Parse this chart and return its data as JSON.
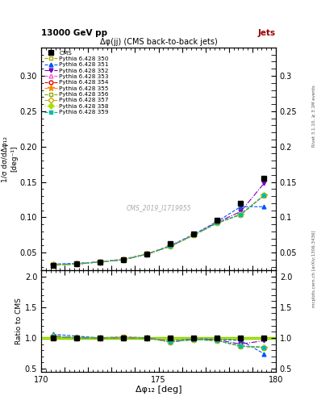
{
  "title_main": "13000 GeV pp",
  "title_right": "Jets",
  "plot_title": "Δφ(јј) (CMS back-to-back jets)",
  "watermark": "CMS_2019_I1719955",
  "xlabel": "Δφ₁₂ [deg]",
  "ylabel": "1/σ dσ/dΔφ₁₂",
  "ylabel_units": "[deg⁻¹]",
  "ylabel_ratio": "Ratio to CMS",
  "right_label": "mcplots.cern.ch [arXiv:1306.3436]",
  "rivet_label": "Rivet 3.1.10, ≥ 3.1M events",
  "xlim": [
    170,
    180
  ],
  "ylim_main": [
    0.025,
    0.34
  ],
  "ylim_ratio": [
    0.45,
    2.1
  ],
  "yticks_main": [
    0.05,
    0.1,
    0.15,
    0.2,
    0.25,
    0.3
  ],
  "yticks_ratio": [
    0.5,
    1.0,
    1.5,
    2.0
  ],
  "x_data": [
    170.5,
    171.5,
    172.5,
    173.5,
    174.5,
    175.5,
    176.5,
    177.5,
    178.5,
    179.5
  ],
  "cms_data": [
    0.032,
    0.034,
    0.037,
    0.04,
    0.048,
    0.063,
    0.077,
    0.096,
    0.12,
    0.155
  ],
  "series": [
    {
      "label": "Pythia 6.428 350",
      "color": "#aaaa00",
      "linestyle": "--",
      "marker": "s",
      "markerfilled": false,
      "data": [
        0.032,
        0.034,
        0.037,
        0.041,
        0.048,
        0.059,
        0.075,
        0.092,
        0.104,
        0.131
      ],
      "ratio": [
        1.0,
        1.0,
        1.0,
        1.02,
        1.0,
        0.937,
        0.974,
        0.958,
        0.867,
        0.845
      ]
    },
    {
      "label": "Pythia 6.428 351",
      "color": "#0055ff",
      "linestyle": "--",
      "marker": "^",
      "markerfilled": true,
      "data": [
        0.034,
        0.035,
        0.037,
        0.04,
        0.048,
        0.06,
        0.076,
        0.094,
        0.115,
        0.115
      ],
      "ratio": [
        1.06,
        1.03,
        1.0,
        1.0,
        1.0,
        0.952,
        0.987,
        0.979,
        0.958,
        0.742
      ]
    },
    {
      "label": "Pythia 6.428 352",
      "color": "#7700bb",
      "linestyle": "-.",
      "marker": "v",
      "markerfilled": true,
      "data": [
        0.033,
        0.034,
        0.037,
        0.04,
        0.048,
        0.059,
        0.075,
        0.093,
        0.108,
        0.148
      ],
      "ratio": [
        1.03,
        1.0,
        1.0,
        1.0,
        1.0,
        0.937,
        0.974,
        0.969,
        0.9,
        0.955
      ]
    },
    {
      "label": "Pythia 6.428 353",
      "color": "#ff55cc",
      "linestyle": "--",
      "marker": "^",
      "markerfilled": false,
      "data": [
        0.033,
        0.034,
        0.037,
        0.041,
        0.048,
        0.06,
        0.075,
        0.092,
        0.104,
        0.131
      ],
      "ratio": [
        1.03,
        1.0,
        1.0,
        1.02,
        1.0,
        0.952,
        0.974,
        0.958,
        0.867,
        0.845
      ]
    },
    {
      "label": "Pythia 6.428 354",
      "color": "#dd0000",
      "linestyle": "--",
      "marker": "o",
      "markerfilled": false,
      "data": [
        0.033,
        0.034,
        0.037,
        0.04,
        0.048,
        0.059,
        0.075,
        0.092,
        0.104,
        0.131
      ],
      "ratio": [
        1.03,
        1.0,
        1.0,
        1.0,
        1.0,
        0.937,
        0.974,
        0.958,
        0.867,
        0.845
      ]
    },
    {
      "label": "Pythia 6.428 355",
      "color": "#ff8800",
      "linestyle": "--",
      "marker": "*",
      "markerfilled": true,
      "data": [
        0.033,
        0.034,
        0.037,
        0.04,
        0.048,
        0.059,
        0.075,
        0.092,
        0.104,
        0.131
      ],
      "ratio": [
        1.03,
        1.0,
        1.0,
        1.0,
        1.0,
        0.937,
        0.974,
        0.958,
        0.867,
        0.845
      ]
    },
    {
      "label": "Pythia 6.428 356",
      "color": "#88aa00",
      "linestyle": "--",
      "marker": "s",
      "markerfilled": false,
      "data": [
        0.033,
        0.034,
        0.037,
        0.04,
        0.048,
        0.059,
        0.075,
        0.092,
        0.104,
        0.131
      ],
      "ratio": [
        1.03,
        1.0,
        1.0,
        1.0,
        1.0,
        0.937,
        0.974,
        0.958,
        0.867,
        0.845
      ]
    },
    {
      "label": "Pythia 6.428 357",
      "color": "#ccaa00",
      "linestyle": "--",
      "marker": "D",
      "markerfilled": false,
      "data": [
        0.033,
        0.034,
        0.037,
        0.04,
        0.048,
        0.059,
        0.075,
        0.092,
        0.104,
        0.131
      ],
      "ratio": [
        1.03,
        1.0,
        1.0,
        1.0,
        1.0,
        0.937,
        0.974,
        0.958,
        0.867,
        0.845
      ]
    },
    {
      "label": "Pythia 6.428 358",
      "color": "#aadd00",
      "linestyle": ":",
      "marker": "D",
      "markerfilled": true,
      "data": [
        0.033,
        0.034,
        0.037,
        0.04,
        0.048,
        0.059,
        0.075,
        0.092,
        0.104,
        0.131
      ],
      "ratio": [
        1.03,
        1.0,
        1.0,
        1.0,
        1.0,
        0.937,
        0.974,
        0.958,
        0.867,
        0.845
      ]
    },
    {
      "label": "Pythia 6.428 359",
      "color": "#00bbaa",
      "linestyle": "--",
      "marker": "s",
      "markerfilled": true,
      "data": [
        0.033,
        0.034,
        0.037,
        0.04,
        0.048,
        0.059,
        0.075,
        0.092,
        0.104,
        0.131
      ],
      "ratio": [
        1.03,
        1.0,
        1.0,
        1.0,
        1.0,
        0.937,
        0.974,
        0.958,
        0.867,
        0.845
      ]
    }
  ]
}
